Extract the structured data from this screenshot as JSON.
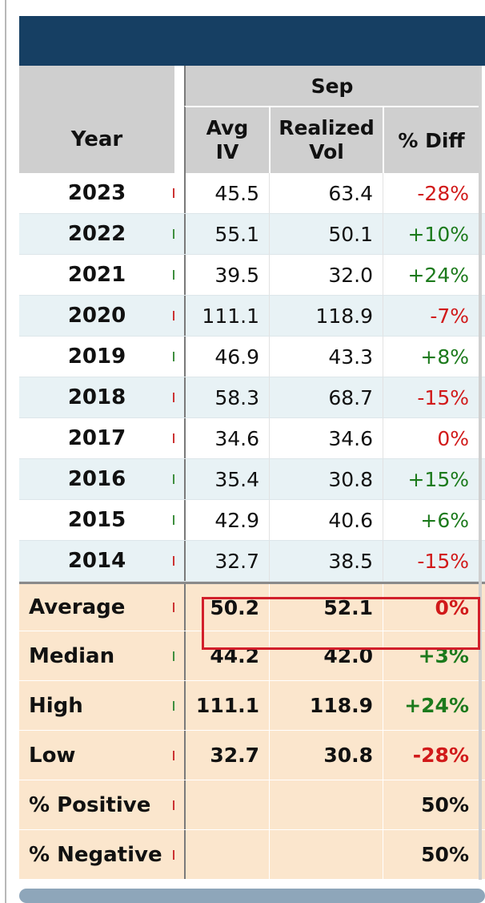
{
  "header": {
    "month": "Sep",
    "year_label": "Year",
    "avg_iv_label_line1": "Avg",
    "avg_iv_label_line2": "IV",
    "realized_label_line1": "Realized",
    "realized_label_line2": "Vol",
    "pct_diff_label": "% Diff"
  },
  "rows": [
    {
      "year": "2023",
      "avg_iv": "45.5",
      "realized": "63.4",
      "diff": "-28%",
      "sign": "neg"
    },
    {
      "year": "2022",
      "avg_iv": "55.1",
      "realized": "50.1",
      "diff": "+10%",
      "sign": "pos"
    },
    {
      "year": "2021",
      "avg_iv": "39.5",
      "realized": "32.0",
      "diff": "+24%",
      "sign": "pos"
    },
    {
      "year": "2020",
      "avg_iv": "111.1",
      "realized": "118.9",
      "diff": "-7%",
      "sign": "neg"
    },
    {
      "year": "2019",
      "avg_iv": "46.9",
      "realized": "43.3",
      "diff": "+8%",
      "sign": "pos"
    },
    {
      "year": "2018",
      "avg_iv": "58.3",
      "realized": "68.7",
      "diff": "-15%",
      "sign": "neg"
    },
    {
      "year": "2017",
      "avg_iv": "34.6",
      "realized": "34.6",
      "diff": "0%",
      "sign": "neg"
    },
    {
      "year": "2016",
      "avg_iv": "35.4",
      "realized": "30.8",
      "diff": "+15%",
      "sign": "pos"
    },
    {
      "year": "2015",
      "avg_iv": "42.9",
      "realized": "40.6",
      "diff": "+6%",
      "sign": "pos"
    },
    {
      "year": "2014",
      "avg_iv": "32.7",
      "realized": "38.5",
      "diff": "-15%",
      "sign": "neg"
    }
  ],
  "stats": [
    {
      "label": "Average",
      "avg_iv": "50.2",
      "realized": "52.1",
      "diff": "0%",
      "sign": "neg"
    },
    {
      "label": "Median",
      "avg_iv": "44.2",
      "realized": "42.0",
      "diff": "+3%",
      "sign": "pos"
    },
    {
      "label": "High",
      "avg_iv": "111.1",
      "realized": "118.9",
      "diff": "+24%",
      "sign": "pos"
    },
    {
      "label": "Low",
      "avg_iv": "32.7",
      "realized": "30.8",
      "diff": "-28%",
      "sign": "neg"
    },
    {
      "label": "% Positive",
      "avg_iv": "",
      "realized": "",
      "diff": "50%",
      "sign": "none"
    },
    {
      "label": "% Negative",
      "avg_iv": "",
      "realized": "",
      "diff": "50%",
      "sign": "none"
    }
  ],
  "colors": {
    "header_bar": "#163f63",
    "header_cell": "#cfcfcf",
    "row_even": "#ffffff",
    "row_odd": "#e8f2f5",
    "stat_bg": "#fbe6cd",
    "negative": "#d11a1a",
    "positive": "#1c7a1c",
    "highlight": "#d21f2b"
  }
}
